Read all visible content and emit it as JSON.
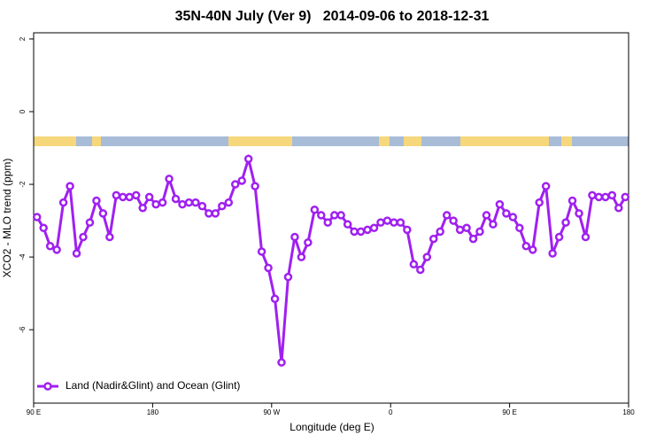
{
  "chart_data": {
    "type": "line",
    "title": "35N-40N July (Ver 9)   2014-09-06 to 2018-12-31",
    "xlabel": "Longitude (deg E)",
    "ylabel": "XCO2 - MLO trend (ppm)",
    "x": [
      92.5,
      97.5,
      102.5,
      107.5,
      112.5,
      117.5,
      122.5,
      127.5,
      132.5,
      137.5,
      142.5,
      147.5,
      152.5,
      157.5,
      162.5,
      167.5,
      172.5,
      177.5,
      182.5,
      187.5,
      192.5,
      197.5,
      202.5,
      207.5,
      212.5,
      217.5,
      222.5,
      227.5,
      232.5,
      237.5,
      242.5,
      247.5,
      252.5,
      257.5,
      262.5,
      267.5,
      272.5,
      277.5,
      282.5,
      287.5,
      292.5,
      297.5,
      302.5,
      307.5,
      312.5,
      317.5,
      322.5,
      327.5,
      332.5,
      337.5,
      342.5,
      347.5,
      352.5,
      357.5,
      362.5,
      367.5,
      372.5,
      377.5,
      382.5,
      387.5,
      392.5,
      397.5,
      402.5,
      407.5,
      412.5,
      417.5,
      422.5,
      427.5,
      432.5,
      437.5,
      442.5,
      447.5,
      452.5,
      457.5,
      462.5,
      467.5,
      472.5,
      477.5,
      482.5,
      487.5,
      492.5,
      497.5,
      502.5,
      507.5,
      512.5,
      517.5,
      522.5,
      527.5,
      532.5,
      537.5
    ],
    "series": [
      {
        "name": "Land (Nadir&Glint) and Ocean (Glint)",
        "color": "#a020f0",
        "values": [
          -2.9,
          -3.2,
          -3.7,
          -3.8,
          -2.5,
          -2.05,
          -3.9,
          -3.45,
          -3.05,
          -2.45,
          -2.8,
          -3.45,
          -2.3,
          -2.35,
          -2.35,
          -2.3,
          -2.65,
          -2.35,
          -2.55,
          -2.5,
          -1.85,
          -2.4,
          -2.55,
          -2.5,
          -2.5,
          -2.6,
          -2.8,
          -2.8,
          -2.6,
          -2.5,
          -2.0,
          -1.9,
          -1.3,
          -2.05,
          -3.85,
          -4.3,
          -5.15,
          -6.9,
          -4.55,
          -3.45,
          -4.0,
          -3.6,
          -2.7,
          -2.85,
          -3.05,
          -2.85,
          -2.85,
          -3.1,
          -3.3,
          -3.3,
          -3.25,
          -3.2,
          -3.05,
          -3.0,
          -3.05,
          -3.05,
          -3.25,
          -4.2,
          -4.35,
          -4.0,
          -3.5,
          -3.3,
          -2.85,
          -3.0,
          -3.25,
          -3.2,
          -3.5,
          -3.3,
          -2.85,
          -3.1,
          -2.55,
          -2.8,
          -2.9,
          -3.2,
          -3.7,
          -3.8,
          -2.5,
          -2.05,
          -3.9,
          -3.45,
          -3.05,
          -2.45,
          -2.8,
          -3.45,
          -2.3,
          -2.35,
          -2.35,
          -2.3,
          -2.65,
          -2.35
        ]
      }
    ],
    "xlim": [
      90,
      540
    ],
    "xticks": [
      {
        "value": 90,
        "label": "90 E"
      },
      180,
      {
        "value": 270,
        "label": "90 W"
      },
      {
        "value": 360,
        "label": "0"
      },
      {
        "value": 450,
        "label": "90 E"
      },
      {
        "value": 540,
        "label": "180"
      }
    ],
    "ylim": [
      -8.02,
      2.17
    ],
    "yticks": [
      2,
      0,
      -2,
      -4,
      -6
    ],
    "legend": "bottomleft"
  }
}
